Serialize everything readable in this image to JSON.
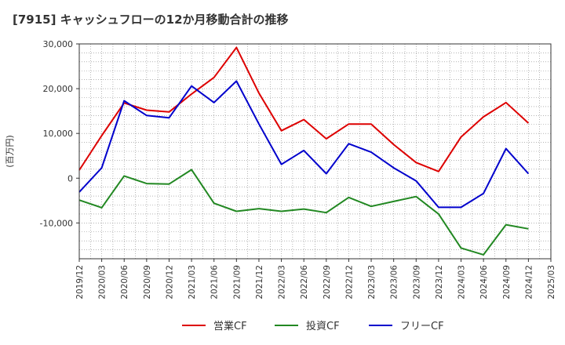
{
  "chart_data": {
    "type": "line",
    "title": "[7915]  キャッシュフローの12か月移動合計の推移",
    "ylabel": "(百万円)",
    "xlabel": "",
    "ylim": [
      -18000,
      30000
    ],
    "yticks": [
      30000,
      20000,
      10000,
      0,
      -10000
    ],
    "ytick_labels": [
      "30,000",
      "20,000",
      "10,000",
      "0",
      "-10,000"
    ],
    "categories": [
      "2019/12",
      "2020/03",
      "2020/06",
      "2020/09",
      "2020/12",
      "2021/03",
      "2021/06",
      "2021/09",
      "2021/12",
      "2022/03",
      "2022/06",
      "2022/09",
      "2022/12",
      "2023/03",
      "2023/06",
      "2023/09",
      "2023/12",
      "2024/03",
      "2024/06",
      "2024/09",
      "2024/12",
      "2025/03"
    ],
    "grid": true,
    "legend_position": "bottom",
    "series": [
      {
        "name": "営業CF",
        "color": "#dd0000",
        "values": [
          1800,
          9500,
          16800,
          15200,
          14800,
          18800,
          22500,
          29200,
          19000,
          10600,
          13100,
          8800,
          12100,
          12100,
          7500,
          3500,
          1500,
          9200,
          13700,
          16900,
          12300,
          null
        ]
      },
      {
        "name": "投資CF",
        "color": "#228822",
        "values": [
          -4900,
          -6600,
          500,
          -1200,
          -1300,
          1900,
          -5600,
          -7400,
          -6800,
          -7400,
          -6900,
          -7700,
          -4300,
          -6300,
          -5200,
          -4100,
          -8000,
          -15600,
          -17100,
          -10400,
          -11300,
          null
        ]
      },
      {
        "name": "フリーCF",
        "color": "#0000cc",
        "values": [
          -3100,
          2300,
          17300,
          14000,
          13500,
          20600,
          16900,
          21700,
          12100,
          3100,
          6200,
          1000,
          7700,
          5800,
          2300,
          -600,
          -6500,
          -6500,
          -3400,
          6600,
          1000,
          null
        ]
      }
    ]
  }
}
